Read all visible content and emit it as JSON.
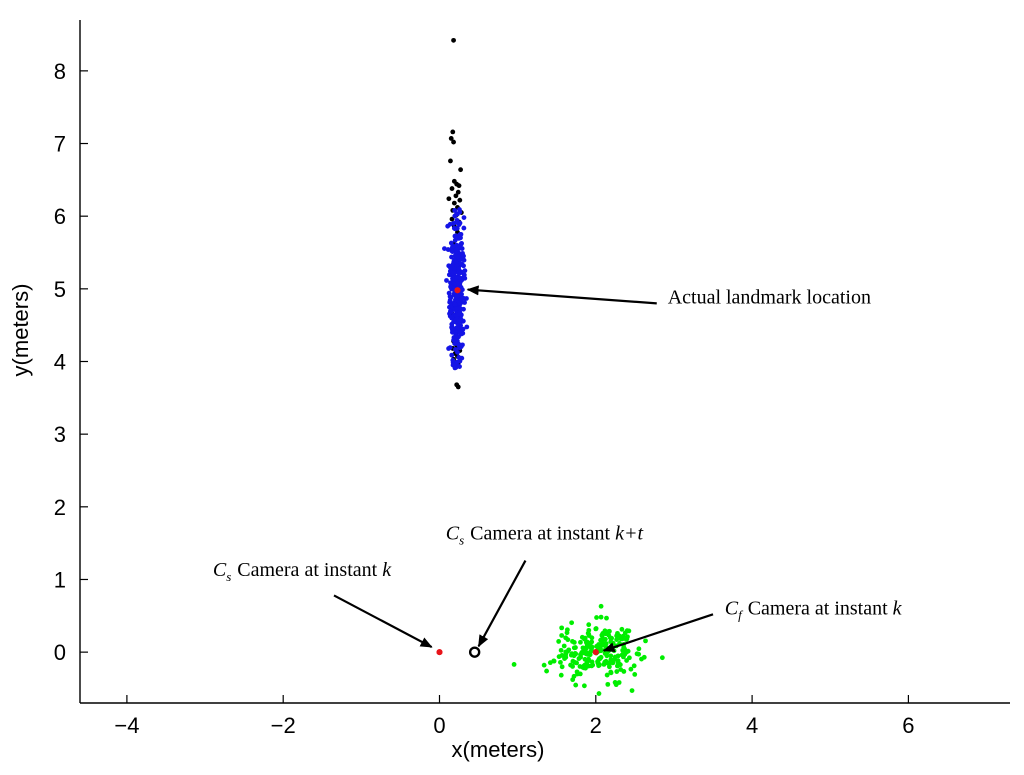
{
  "chart_data": {
    "type": "scatter",
    "title": "",
    "xlabel": "x(meters)",
    "ylabel": "y(meters)",
    "xlim": [
      -4.6,
      7.3
    ],
    "ylim": [
      -0.7,
      8.7
    ],
    "x_ticks": [
      -4,
      -2,
      0,
      2,
      4,
      6
    ],
    "x_tick_labels": [
      "−4",
      "−2",
      "0",
      "2",
      "4",
      "6"
    ],
    "y_ticks": [
      0,
      1,
      2,
      3,
      4,
      5,
      6,
      7,
      8
    ],
    "y_tick_labels": [
      "0",
      "1",
      "2",
      "3",
      "4",
      "5",
      "6",
      "7",
      "8"
    ],
    "grid": false,
    "series": [
      {
        "color": "#000000",
        "points": [
          [
            0.18,
            8.42
          ],
          [
            0.17,
            7.16
          ],
          [
            0.15,
            7.07
          ],
          [
            0.18,
            7.02
          ],
          [
            0.14,
            6.76
          ],
          [
            0.27,
            6.64
          ],
          [
            0.19,
            6.48
          ],
          [
            0.22,
            6.44
          ],
          [
            0.25,
            6.42
          ],
          [
            0.16,
            6.38
          ],
          [
            0.24,
            6.33
          ],
          [
            0.21,
            6.28
          ],
          [
            0.12,
            6.24
          ],
          [
            0.26,
            6.22
          ],
          [
            0.19,
            6.18
          ],
          [
            0.23,
            6.12
          ],
          [
            0.17,
            6.08
          ],
          [
            0.28,
            6.05
          ],
          [
            0.21,
            6.01
          ],
          [
            0.16,
            5.96
          ],
          [
            0.25,
            5.92
          ],
          [
            0.19,
            5.86
          ],
          [
            0.23,
            5.78
          ],
          [
            0.18,
            5.62
          ],
          [
            0.26,
            5.41
          ],
          [
            0.17,
            5.18
          ],
          [
            0.24,
            4.92
          ],
          [
            0.16,
            4.66
          ],
          [
            0.25,
            4.41
          ],
          [
            0.18,
            4.28
          ],
          [
            0.22,
            4.22
          ],
          [
            0.17,
            4.18
          ],
          [
            0.26,
            4.15
          ],
          [
            0.2,
            4.11
          ],
          [
            0.23,
            4.07
          ],
          [
            0.18,
            4.03
          ],
          [
            0.24,
            3.98
          ],
          [
            0.21,
            3.92
          ],
          [
            0.22,
            3.68
          ],
          [
            0.24,
            3.65
          ]
        ]
      },
      {
        "color": "#1414e6",
        "spread": {
          "x_center": 0.22,
          "x_sd": 0.045,
          "y_center": 5.0,
          "y_sd": 0.48,
          "y_range": [
            3.9,
            6.1
          ],
          "count": 360
        }
      },
      {
        "color": "#00ee00",
        "spread": {
          "x_center": 2.0,
          "x_sd": 0.26,
          "y_center": 0.0,
          "y_sd": 0.2,
          "count": 240
        }
      },
      {
        "color": "#e8141a",
        "points": [
          [
            0.23,
            4.98
          ],
          [
            0.0,
            0.0
          ],
          [
            2.0,
            0.0
          ]
        ]
      }
    ],
    "markers": [
      {
        "x": 0.45,
        "y": 0.0,
        "color": "#000000"
      }
    ],
    "annotations": [
      {
        "symbol": "C",
        "subscript": "s",
        "text": "Camera at instant",
        "var": "k",
        "text_at": [
          -2.9,
          1.05
        ],
        "arrow_from": [
          -1.35,
          0.78
        ],
        "arrow_to": [
          -0.1,
          0.07
        ]
      },
      {
        "symbol": "C",
        "subscript": "s",
        "text": "Camera at instant",
        "var": "k+t",
        "text_at": [
          0.08,
          1.55
        ],
        "arrow_from": [
          1.1,
          1.26
        ],
        "arrow_to": [
          0.5,
          0.08
        ]
      },
      {
        "symbol": "C",
        "subscript": "f",
        "text": "Camera at instant",
        "var": "k",
        "text_at": [
          3.65,
          0.52
        ],
        "arrow_from": [
          3.5,
          0.52
        ],
        "arrow_to": [
          2.1,
          0.02
        ]
      },
      {
        "symbol": "",
        "subscript": "",
        "text": "Actual landmark location",
        "var": "",
        "text_at": [
          2.92,
          4.8
        ],
        "arrow_from": [
          2.78,
          4.8
        ],
        "arrow_to": [
          0.36,
          4.99
        ]
      }
    ]
  }
}
